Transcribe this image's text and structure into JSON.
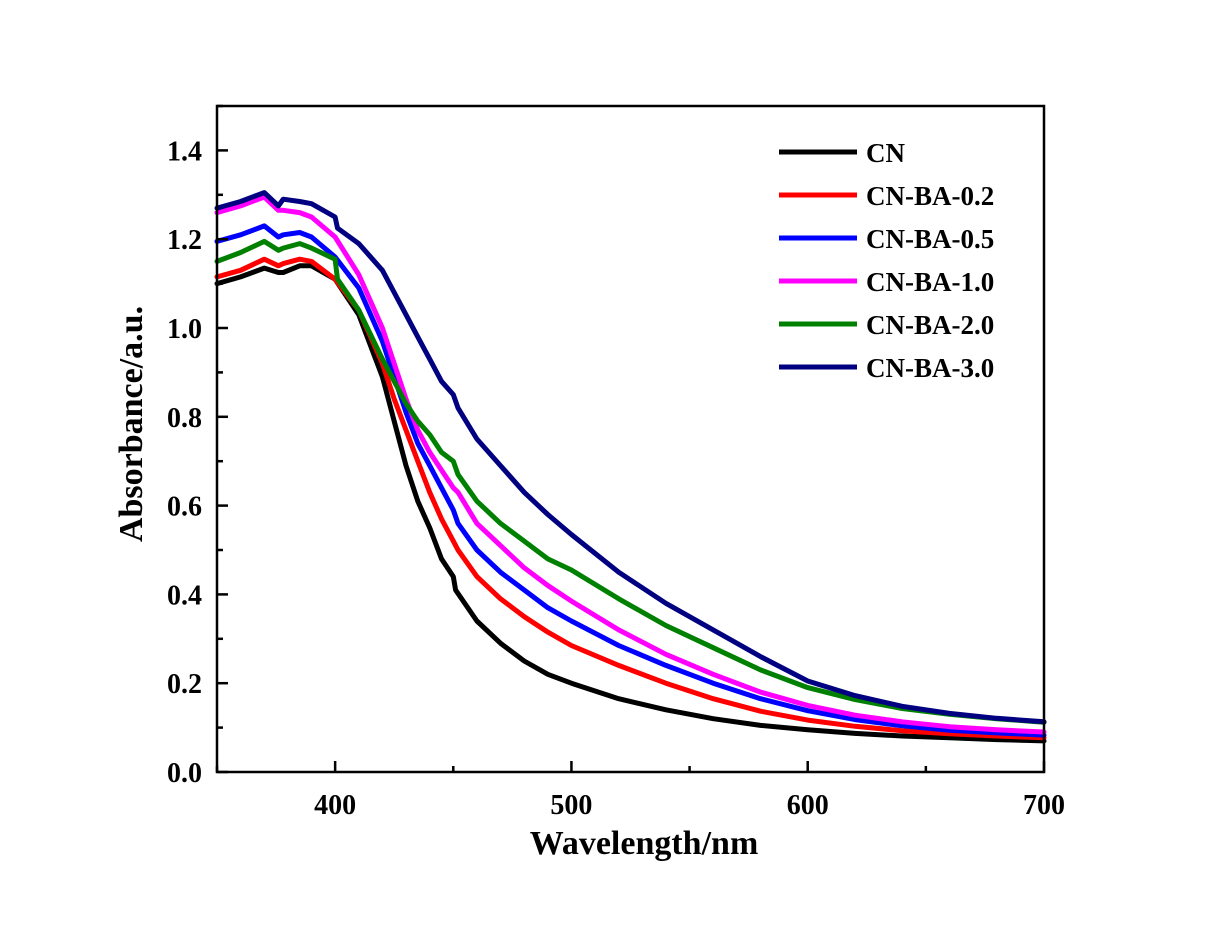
{
  "chart_data": {
    "type": "line",
    "xlabel": "Wavelength/nm",
    "ylabel": "Absorbance/a.u.",
    "xlim": [
      350,
      700
    ],
    "ylim": [
      0,
      1.5
    ],
    "xticks": [
      400,
      500,
      600,
      700
    ],
    "xtick_labels": [
      "400",
      "500",
      "600",
      "700"
    ],
    "xminor_step": 50,
    "yticks": [
      0.0,
      0.2,
      0.4,
      0.6,
      0.8,
      1.0,
      1.2,
      1.4
    ],
    "ytick_labels": [
      "0.0",
      "0.2",
      "0.4",
      "0.6",
      "0.8",
      "1.0",
      "1.2",
      "1.4"
    ],
    "yminor_step": 0.1,
    "grid": false,
    "legend_position": "top-right",
    "series": [
      {
        "name": "CN",
        "color": "#000000",
        "points": [
          [
            350,
            1.1
          ],
          [
            360,
            1.115
          ],
          [
            370,
            1.135
          ],
          [
            376,
            1.125
          ],
          [
            378,
            1.125
          ],
          [
            385,
            1.14
          ],
          [
            390,
            1.14
          ],
          [
            400,
            1.11
          ],
          [
            410,
            1.03
          ],
          [
            420,
            0.89
          ],
          [
            425,
            0.79
          ],
          [
            430,
            0.69
          ],
          [
            435,
            0.61
          ],
          [
            440,
            0.55
          ],
          [
            445,
            0.48
          ],
          [
            450,
            0.44
          ],
          [
            451,
            0.41
          ],
          [
            460,
            0.34
          ],
          [
            470,
            0.29
          ],
          [
            480,
            0.25
          ],
          [
            490,
            0.22
          ],
          [
            500,
            0.2
          ],
          [
            520,
            0.165
          ],
          [
            540,
            0.14
          ],
          [
            560,
            0.12
          ],
          [
            580,
            0.105
          ],
          [
            600,
            0.095
          ],
          [
            620,
            0.087
          ],
          [
            640,
            0.081
          ],
          [
            660,
            0.077
          ],
          [
            680,
            0.073
          ],
          [
            700,
            0.07
          ]
        ]
      },
      {
        "name": "CN-BA-0.2",
        "color": "#ff0000",
        "points": [
          [
            350,
            1.115
          ],
          [
            360,
            1.13
          ],
          [
            370,
            1.155
          ],
          [
            376,
            1.14
          ],
          [
            378,
            1.145
          ],
          [
            385,
            1.155
          ],
          [
            390,
            1.15
          ],
          [
            400,
            1.11
          ],
          [
            410,
            1.04
          ],
          [
            420,
            0.92
          ],
          [
            425,
            0.84
          ],
          [
            430,
            0.77
          ],
          [
            435,
            0.7
          ],
          [
            440,
            0.63
          ],
          [
            445,
            0.57
          ],
          [
            450,
            0.52
          ],
          [
            452,
            0.5
          ],
          [
            460,
            0.44
          ],
          [
            470,
            0.39
          ],
          [
            480,
            0.35
          ],
          [
            490,
            0.315
          ],
          [
            500,
            0.285
          ],
          [
            520,
            0.24
          ],
          [
            540,
            0.2
          ],
          [
            560,
            0.165
          ],
          [
            580,
            0.137
          ],
          [
            600,
            0.117
          ],
          [
            620,
            0.103
          ],
          [
            640,
            0.093
          ],
          [
            660,
            0.086
          ],
          [
            680,
            0.081
          ],
          [
            700,
            0.077
          ]
        ]
      },
      {
        "name": "CN-BA-0.5",
        "color": "#0000ff",
        "points": [
          [
            350,
            1.195
          ],
          [
            360,
            1.21
          ],
          [
            370,
            1.23
          ],
          [
            376,
            1.205
          ],
          [
            378,
            1.21
          ],
          [
            385,
            1.215
          ],
          [
            390,
            1.205
          ],
          [
            400,
            1.16
          ],
          [
            410,
            1.09
          ],
          [
            420,
            0.97
          ],
          [
            425,
            0.89
          ],
          [
            430,
            0.81
          ],
          [
            435,
            0.74
          ],
          [
            440,
            0.69
          ],
          [
            445,
            0.64
          ],
          [
            450,
            0.59
          ],
          [
            452,
            0.56
          ],
          [
            460,
            0.5
          ],
          [
            470,
            0.45
          ],
          [
            480,
            0.41
          ],
          [
            490,
            0.37
          ],
          [
            500,
            0.34
          ],
          [
            520,
            0.285
          ],
          [
            540,
            0.24
          ],
          [
            560,
            0.2
          ],
          [
            580,
            0.165
          ],
          [
            600,
            0.138
          ],
          [
            620,
            0.118
          ],
          [
            640,
            0.104
          ],
          [
            660,
            0.094
          ],
          [
            680,
            0.088
          ],
          [
            700,
            0.083
          ]
        ]
      },
      {
        "name": "CN-BA-1.0",
        "color": "#ff00ff",
        "points": [
          [
            350,
            1.26
          ],
          [
            360,
            1.275
          ],
          [
            370,
            1.295
          ],
          [
            376,
            1.265
          ],
          [
            378,
            1.265
          ],
          [
            385,
            1.26
          ],
          [
            390,
            1.25
          ],
          [
            400,
            1.205
          ],
          [
            410,
            1.12
          ],
          [
            420,
            1.0
          ],
          [
            425,
            0.92
          ],
          [
            430,
            0.84
          ],
          [
            435,
            0.77
          ],
          [
            440,
            0.72
          ],
          [
            445,
            0.68
          ],
          [
            450,
            0.64
          ],
          [
            452,
            0.63
          ],
          [
            460,
            0.56
          ],
          [
            470,
            0.51
          ],
          [
            480,
            0.46
          ],
          [
            490,
            0.42
          ],
          [
            500,
            0.385
          ],
          [
            520,
            0.32
          ],
          [
            540,
            0.265
          ],
          [
            560,
            0.22
          ],
          [
            580,
            0.18
          ],
          [
            600,
            0.15
          ],
          [
            620,
            0.128
          ],
          [
            640,
            0.113
          ],
          [
            660,
            0.102
          ],
          [
            680,
            0.095
          ],
          [
            700,
            0.09
          ]
        ]
      },
      {
        "name": "CN-BA-2.0",
        "color": "#008000",
        "points": [
          [
            350,
            1.15
          ],
          [
            360,
            1.17
          ],
          [
            370,
            1.195
          ],
          [
            376,
            1.175
          ],
          [
            378,
            1.18
          ],
          [
            385,
            1.19
          ],
          [
            390,
            1.18
          ],
          [
            400,
            1.155
          ],
          [
            401,
            1.11
          ],
          [
            410,
            1.04
          ],
          [
            420,
            0.93
          ],
          [
            425,
            0.88
          ],
          [
            430,
            0.83
          ],
          [
            435,
            0.79
          ],
          [
            440,
            0.76
          ],
          [
            445,
            0.72
          ],
          [
            450,
            0.7
          ],
          [
            452,
            0.67
          ],
          [
            460,
            0.61
          ],
          [
            470,
            0.56
          ],
          [
            480,
            0.52
          ],
          [
            490,
            0.48
          ],
          [
            500,
            0.455
          ],
          [
            520,
            0.39
          ],
          [
            540,
            0.33
          ],
          [
            560,
            0.28
          ],
          [
            580,
            0.23
          ],
          [
            600,
            0.19
          ],
          [
            620,
            0.163
          ],
          [
            640,
            0.143
          ],
          [
            660,
            0.13
          ],
          [
            680,
            0.12
          ],
          [
            700,
            0.112
          ]
        ]
      },
      {
        "name": "CN-BA-3.0",
        "color": "#000080",
        "points": [
          [
            350,
            1.27
          ],
          [
            360,
            1.285
          ],
          [
            370,
            1.305
          ],
          [
            376,
            1.275
          ],
          [
            378,
            1.29
          ],
          [
            385,
            1.285
          ],
          [
            390,
            1.28
          ],
          [
            400,
            1.25
          ],
          [
            401,
            1.225
          ],
          [
            410,
            1.19
          ],
          [
            420,
            1.13
          ],
          [
            425,
            1.08
          ],
          [
            430,
            1.03
          ],
          [
            435,
            0.98
          ],
          [
            440,
            0.93
          ],
          [
            445,
            0.88
          ],
          [
            450,
            0.85
          ],
          [
            452,
            0.82
          ],
          [
            460,
            0.75
          ],
          [
            470,
            0.69
          ],
          [
            480,
            0.63
          ],
          [
            490,
            0.58
          ],
          [
            500,
            0.535
          ],
          [
            520,
            0.45
          ],
          [
            540,
            0.38
          ],
          [
            560,
            0.32
          ],
          [
            580,
            0.26
          ],
          [
            600,
            0.205
          ],
          [
            620,
            0.172
          ],
          [
            640,
            0.148
          ],
          [
            660,
            0.132
          ],
          [
            680,
            0.121
          ],
          [
            700,
            0.113
          ]
        ]
      }
    ]
  }
}
